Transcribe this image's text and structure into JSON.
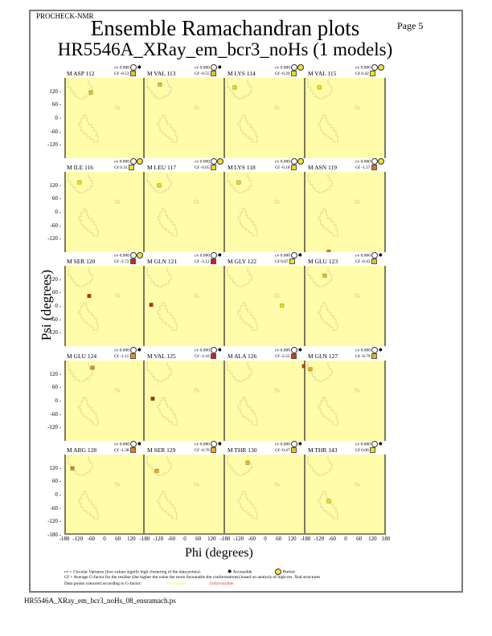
{
  "header": {
    "program": "PROCHECK-NMR",
    "page": "Page  5",
    "title": "Ensemble Ramachandran plots",
    "subtitle": "HR5546A_XRay_em_bcr3_noHs (1 models)"
  },
  "axes": {
    "xlabel": "Phi (degrees)",
    "ylabel": "Psi (degrees)",
    "xticks": [
      "-180",
      "-120",
      "-60",
      "0",
      "60",
      "120",
      "-180"
    ],
    "xticks_last": [
      "-180",
      "-120",
      "-60",
      "0",
      "60",
      "120",
      "180"
    ],
    "yticks": [
      "120",
      "60",
      "0",
      "-60",
      "-120"
    ],
    "yticks_last": [
      "120",
      "60",
      "0",
      "-60",
      "-120",
      "-180"
    ]
  },
  "legend": {
    "line1": "cv = Circular Variance (low values signify high clustering of the data points).",
    "accessible": "Accessible",
    "buried": "Buried",
    "line2": "Gf = Average G-factor for the residue (the higher the value the more favourable the conformations) based on analysis of high-res. Xtal structures",
    "line3": "Data points coloured according to G-factor:",
    "favourable": "Favourable",
    "unfavourable": "Unfavourable",
    "favourable_color": "#f3ea40",
    "unfavourable_color": "#e03030"
  },
  "footer": "HR5546A_XRay_em_bcr3_noHs_08_ensramach.ps",
  "colors": {
    "panel_bg": "#fffcaa",
    "region_outline": "#a09a60",
    "point_favourable": "#e8d010",
    "point_mid": "#e09820",
    "point_unfavourable": "#c02020"
  },
  "panels": [
    {
      "label": "M ASP 112",
      "cv": "cv 0.000",
      "gf": "Gf -0.53",
      "access": "accessible",
      "gf_color": "#e8c020",
      "phi": -68,
      "psi": 115
    },
    {
      "label": "M VAL 113",
      "cv": "cv 0.000",
      "gf": "Gf -0.55",
      "access": "accessible",
      "gf_color": "#e8c020",
      "phi": -112,
      "psi": 150
    },
    {
      "label": "M LYS 114",
      "cv": "cv 0.000",
      "gf": "Gf -0.20",
      "access": "buried",
      "gf_color": "#ecd820",
      "phi": -137,
      "psi": 137
    },
    {
      "label": "M VAL 115",
      "cv": "cv 0.000",
      "gf": "Gf 0.42",
      "access": "buried",
      "gf_color": "#f0e020",
      "phi": -118,
      "psi": 137
    },
    {
      "label": "M ILE 116",
      "cv": "cv 0.000",
      "gf": "Gf 0.31",
      "access": "buried",
      "gf_color": "#f0e020",
      "phi": -119,
      "psi": 133
    },
    {
      "label": "M LEU 117",
      "cv": "cv 0.000",
      "gf": "Gf -0.05",
      "access": "buried",
      "gf_color": "#ecd820",
      "phi": -115,
      "psi": 119
    },
    {
      "label": "M LYS 118",
      "cv": "cv 0.000",
      "gf": "Gf -0.18",
      "access": "buried",
      "gf_color": "#ecd820",
      "phi": -119,
      "psi": 133
    },
    {
      "label": "M ASN 119",
      "cv": "cv 0.000",
      "gf": "Gf -1.57",
      "access": "buried",
      "gf_color": "#e07020",
      "phi": -76,
      "psi": -178
    },
    {
      "label": "M SER 120",
      "cv": "cv 0.000",
      "gf": "Gf -2.72",
      "access": "buried",
      "gf_color": "#c82820",
      "phi": -76,
      "psi": 45
    },
    {
      "label": "M GLN 121",
      "cv": "cv 0.000",
      "gf": "Gf -3.12",
      "access": "accessible",
      "gf_color": "#c82020",
      "phi": -151,
      "psi": 5
    },
    {
      "label": "M GLY 122",
      "cv": "cv 0.000",
      "gf": "Gf 0.67",
      "access": "accessible",
      "gf_color": "#f0e020",
      "phi": 75,
      "psi": 2
    },
    {
      "label": "M GLU 123",
      "cv": "cv 0.000",
      "gf": "Gf -0.43",
      "access": "accessible",
      "gf_color": "#e8c020",
      "phi": -94,
      "psi": 136
    },
    {
      "label": "M GLU 124",
      "cv": "cv 0.000",
      "gf": "Gf -1.11",
      "access": "accessible",
      "gf_color": "#e09020",
      "phi": -61,
      "psi": 148
    },
    {
      "label": "M VAL 125",
      "cv": "cv 0.000",
      "gf": "Gf -3.10",
      "access": "accessible",
      "gf_color": "#c82020",
      "phi": -144,
      "psi": 9
    },
    {
      "label": "M ALA 126",
      "cv": "cv 0.000",
      "gf": "Gf -2.55",
      "access": "accessible",
      "gf_color": "#d03820",
      "phi": 173,
      "psi": 155
    },
    {
      "label": "M GLN 127",
      "cv": "cv 0.000",
      "gf": "Gf -0.79",
      "access": "accessible",
      "gf_color": "#e8b020",
      "phi": -158,
      "psi": 141
    },
    {
      "label": "M ARG 128",
      "cv": "cv 0.000",
      "gf": "Gf -1.38",
      "access": "accessible",
      "gf_color": "#e08020",
      "phi": -151,
      "psi": 118
    },
    {
      "label": "M SER 129",
      "cv": "cv 0.000",
      "gf": "Gf -0.76",
      "access": "accessible",
      "gf_color": "#e8b020",
      "phi": -126,
      "psi": 107
    },
    {
      "label": "M THR 130",
      "cv": "cv 0.000",
      "gf": "Gf -0.47",
      "access": "accessible",
      "gf_color": "#e8c020",
      "phi": -79,
      "psi": 143
    },
    {
      "label": "M THR 143",
      "cv": "cv 0.000",
      "gf": "Gf 0.06",
      "access": "accessible",
      "gf_color": "#f0e020",
      "phi": -76,
      "psi": -29
    }
  ],
  "chart_data": {
    "type": "scatter",
    "title": "Ensemble Ramachandran plots",
    "subtitle": "HR5546A_XRay_em_bcr3_noHs (1 models)",
    "xlabel": "Phi (degrees)",
    "ylabel": "Psi (degrees)",
    "xlim": [
      -180,
      180
    ],
    "ylim": [
      -180,
      180
    ],
    "grid": false,
    "layout": "5 rows x 4 columns of small-multiple panels",
    "series": [
      {
        "name": "M ASP 112",
        "cv": 0.0,
        "gf": -0.53,
        "x": [
          -68
        ],
        "y": [
          115
        ]
      },
      {
        "name": "M VAL 113",
        "cv": 0.0,
        "gf": -0.55,
        "x": [
          -112
        ],
        "y": [
          150
        ]
      },
      {
        "name": "M LYS 114",
        "cv": 0.0,
        "gf": -0.2,
        "x": [
          -137
        ],
        "y": [
          137
        ]
      },
      {
        "name": "M VAL 115",
        "cv": 0.0,
        "gf": 0.42,
        "x": [
          -118
        ],
        "y": [
          137
        ]
      },
      {
        "name": "M ILE 116",
        "cv": 0.0,
        "gf": 0.31,
        "x": [
          -119
        ],
        "y": [
          133
        ]
      },
      {
        "name": "M LEU 117",
        "cv": 0.0,
        "gf": -0.05,
        "x": [
          -115
        ],
        "y": [
          119
        ]
      },
      {
        "name": "M LYS 118",
        "cv": 0.0,
        "gf": -0.18,
        "x": [
          -119
        ],
        "y": [
          133
        ]
      },
      {
        "name": "M ASN 119",
        "cv": 0.0,
        "gf": -1.57,
        "x": [
          -76
        ],
        "y": [
          -178
        ]
      },
      {
        "name": "M SER 120",
        "cv": 0.0,
        "gf": -2.72,
        "x": [
          -76
        ],
        "y": [
          45
        ]
      },
      {
        "name": "M GLN 121",
        "cv": 0.0,
        "gf": -3.12,
        "x": [
          -151
        ],
        "y": [
          5
        ]
      },
      {
        "name": "M GLY 122",
        "cv": 0.0,
        "gf": 0.67,
        "x": [
          75
        ],
        "y": [
          2
        ]
      },
      {
        "name": "M GLU 123",
        "cv": 0.0,
        "gf": -0.43,
        "x": [
          -94
        ],
        "y": [
          136
        ]
      },
      {
        "name": "M GLU 124",
        "cv": 0.0,
        "gf": -1.11,
        "x": [
          -61
        ],
        "y": [
          148
        ]
      },
      {
        "name": "M VAL 125",
        "cv": 0.0,
        "gf": -3.1,
        "x": [
          -144
        ],
        "y": [
          9
        ]
      },
      {
        "name": "M ALA 126",
        "cv": 0.0,
        "gf": -2.55,
        "x": [
          173
        ],
        "y": [
          155
        ]
      },
      {
        "name": "M GLN 127",
        "cv": 0.0,
        "gf": -0.79,
        "x": [
          -158
        ],
        "y": [
          141
        ]
      },
      {
        "name": "M ARG 128",
        "cv": 0.0,
        "gf": -1.38,
        "x": [
          -151
        ],
        "y": [
          118
        ]
      },
      {
        "name": "M SER 129",
        "cv": 0.0,
        "gf": -0.76,
        "x": [
          -126
        ],
        "y": [
          107
        ]
      },
      {
        "name": "M THR 130",
        "cv": 0.0,
        "gf": -0.47,
        "x": [
          -79
        ],
        "y": [
          143
        ]
      },
      {
        "name": "M THR 143",
        "cv": 0.0,
        "gf": 0.06,
        "x": [
          -76
        ],
        "y": [
          -29
        ]
      }
    ],
    "xticks": [
      -180,
      -120,
      -60,
      0,
      60,
      120,
      180
    ],
    "yticks": [
      -180,
      -120,
      -60,
      0,
      60,
      120
    ],
    "legend": {
      "cv": "Circular Variance (low values signify high clustering of the data points)",
      "Gf": "Average G-factor for the residue",
      "symbols": [
        "Accessible",
        "Buried"
      ],
      "colour_scale": [
        "Favourable",
        "Unfavourable"
      ]
    }
  }
}
